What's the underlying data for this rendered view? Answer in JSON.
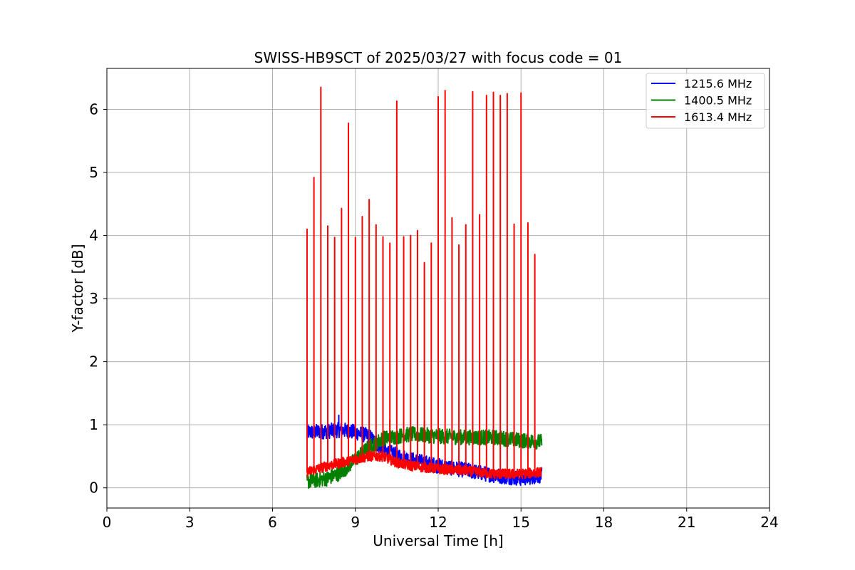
{
  "chart_data": {
    "type": "line",
    "title": "SWISS-HB9SCT of 2025/03/27 with focus code = 01",
    "xlabel": "Universal Time [h]",
    "ylabel": "Y-factor [dB]",
    "xlim": [
      0,
      24
    ],
    "ylim": [
      -0.32,
      6.65
    ],
    "xticks": [
      0,
      3,
      6,
      9,
      12,
      15,
      18,
      21,
      24
    ],
    "yticks": [
      0,
      1,
      2,
      3,
      4,
      5,
      6
    ],
    "grid": true,
    "legend_position": "upper right",
    "x_range_data": [
      7.25,
      15.75
    ],
    "series": [
      {
        "name": "1215.6 MHz",
        "color": "#0000ff",
        "baseline": [
          [
            7.25,
            0.88
          ],
          [
            8.0,
            0.9
          ],
          [
            8.5,
            0.92
          ],
          [
            9.0,
            0.88
          ],
          [
            9.5,
            0.82
          ],
          [
            10.0,
            0.6
          ],
          [
            10.5,
            0.52
          ],
          [
            11.0,
            0.45
          ],
          [
            12.0,
            0.35
          ],
          [
            13.0,
            0.28
          ],
          [
            14.0,
            0.2
          ],
          [
            15.0,
            0.15
          ],
          [
            15.75,
            0.2
          ]
        ],
        "noise": 0.12,
        "peaks": [
          [
            8.4,
            1.15
          ]
        ]
      },
      {
        "name": "1400.5 MHz",
        "color": "#008000",
        "baseline": [
          [
            7.25,
            0.1
          ],
          [
            8.0,
            0.15
          ],
          [
            8.5,
            0.25
          ],
          [
            9.0,
            0.45
          ],
          [
            9.5,
            0.65
          ],
          [
            10.0,
            0.78
          ],
          [
            11.0,
            0.85
          ],
          [
            12.0,
            0.82
          ],
          [
            13.0,
            0.8
          ],
          [
            14.0,
            0.8
          ],
          [
            15.0,
            0.75
          ],
          [
            15.75,
            0.73
          ]
        ],
        "noise": 0.12,
        "peaks": [
          [
            10.25,
            1.08
          ],
          [
            11.5,
            1.06
          ],
          [
            13.25,
            1.06
          ]
        ]
      },
      {
        "name": "1613.4 MHz",
        "color": "#ff0000",
        "baseline": [
          [
            7.25,
            0.25
          ],
          [
            8.0,
            0.35
          ],
          [
            9.0,
            0.45
          ],
          [
            9.5,
            0.5
          ],
          [
            10.0,
            0.5
          ],
          [
            10.5,
            0.4
          ],
          [
            11.0,
            0.35
          ],
          [
            12.0,
            0.3
          ],
          [
            13.0,
            0.27
          ],
          [
            14.0,
            0.22
          ],
          [
            15.0,
            0.22
          ],
          [
            15.75,
            0.25
          ]
        ],
        "noise": 0.08,
        "peaks": [
          [
            7.25,
            4.1
          ],
          [
            7.5,
            4.92
          ],
          [
            7.75,
            6.35
          ],
          [
            8.0,
            4.15
          ],
          [
            8.25,
            3.97
          ],
          [
            8.5,
            4.43
          ],
          [
            8.75,
            5.78
          ],
          [
            9.0,
            3.97
          ],
          [
            9.25,
            4.3
          ],
          [
            9.5,
            4.57
          ],
          [
            9.75,
            4.17
          ],
          [
            10.0,
            3.98
          ],
          [
            10.25,
            3.88
          ],
          [
            10.5,
            6.13
          ],
          [
            10.75,
            3.98
          ],
          [
            11.0,
            4.0
          ],
          [
            11.25,
            4.08
          ],
          [
            11.5,
            3.57
          ],
          [
            11.75,
            3.88
          ],
          [
            12.0,
            6.2
          ],
          [
            12.25,
            6.3
          ],
          [
            12.5,
            4.28
          ],
          [
            12.75,
            3.85
          ],
          [
            13.0,
            4.17
          ],
          [
            13.25,
            6.28
          ],
          [
            13.5,
            4.33
          ],
          [
            13.75,
            6.22
          ],
          [
            14.0,
            6.27
          ],
          [
            14.25,
            6.22
          ],
          [
            14.5,
            6.25
          ],
          [
            14.75,
            4.18
          ],
          [
            15.0,
            6.26
          ],
          [
            15.25,
            4.2
          ],
          [
            15.5,
            3.7
          ]
        ]
      }
    ]
  }
}
